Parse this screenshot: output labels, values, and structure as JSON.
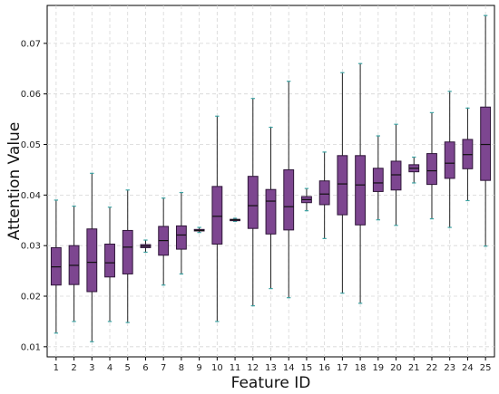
{
  "chart_data": {
    "type": "box",
    "title": "",
    "xlabel": "Feature ID",
    "ylabel": "Attention Value",
    "ylim": [
      0.008,
      0.0775
    ],
    "yticks": [
      0.01,
      0.02,
      0.03,
      0.04,
      0.05,
      0.06,
      0.07
    ],
    "ytick_labels": [
      "0.01",
      "0.02",
      "0.03",
      "0.04",
      "0.05",
      "0.06",
      "0.07"
    ],
    "grid": true,
    "categories": [
      "1",
      "2",
      "3",
      "4",
      "5",
      "6",
      "7",
      "8",
      "9",
      "10",
      "11",
      "12",
      "13",
      "14",
      "15",
      "16",
      "17",
      "18",
      "19",
      "20",
      "21",
      "22",
      "23",
      "24",
      "25"
    ],
    "boxes": [
      {
        "min": 0.0127,
        "q1": 0.0222,
        "median": 0.0258,
        "q3": 0.0296,
        "max": 0.039
      },
      {
        "min": 0.015,
        "q1": 0.0223,
        "median": 0.0261,
        "q3": 0.03,
        "max": 0.0378
      },
      {
        "min": 0.011,
        "q1": 0.0209,
        "median": 0.0267,
        "q3": 0.0333,
        "max": 0.0443
      },
      {
        "min": 0.015,
        "q1": 0.0238,
        "median": 0.0266,
        "q3": 0.0303,
        "max": 0.0376
      },
      {
        "min": 0.0148,
        "q1": 0.0244,
        "median": 0.0297,
        "q3": 0.033,
        "max": 0.041
      },
      {
        "min": 0.0287,
        "q1": 0.0296,
        "median": 0.0299,
        "q3": 0.0302,
        "max": 0.0311
      },
      {
        "min": 0.0222,
        "q1": 0.0281,
        "median": 0.031,
        "q3": 0.0338,
        "max": 0.0394
      },
      {
        "min": 0.0244,
        "q1": 0.0293,
        "median": 0.0321,
        "q3": 0.0339,
        "max": 0.0405
      },
      {
        "min": 0.0326,
        "q1": 0.0329,
        "median": 0.033,
        "q3": 0.0332,
        "max": 0.0336
      },
      {
        "min": 0.015,
        "q1": 0.0303,
        "median": 0.0358,
        "q3": 0.0417,
        "max": 0.0556
      },
      {
        "min": 0.0348,
        "q1": 0.035,
        "median": 0.0351,
        "q3": 0.0352,
        "max": 0.0354
      },
      {
        "min": 0.0181,
        "q1": 0.0334,
        "median": 0.0379,
        "q3": 0.0437,
        "max": 0.0591
      },
      {
        "min": 0.0215,
        "q1": 0.0323,
        "median": 0.0388,
        "q3": 0.0411,
        "max": 0.0534
      },
      {
        "min": 0.0197,
        "q1": 0.0331,
        "median": 0.0377,
        "q3": 0.045,
        "max": 0.0625
      },
      {
        "min": 0.0369,
        "q1": 0.0385,
        "median": 0.0391,
        "q3": 0.0397,
        "max": 0.0413
      },
      {
        "min": 0.0314,
        "q1": 0.0381,
        "median": 0.0402,
        "q3": 0.0428,
        "max": 0.0485
      },
      {
        "min": 0.0206,
        "q1": 0.0361,
        "median": 0.0422,
        "q3": 0.0478,
        "max": 0.0642
      },
      {
        "min": 0.0186,
        "q1": 0.0341,
        "median": 0.042,
        "q3": 0.0478,
        "max": 0.066
      },
      {
        "min": 0.0351,
        "q1": 0.0407,
        "median": 0.0424,
        "q3": 0.0453,
        "max": 0.0517
      },
      {
        "min": 0.034,
        "q1": 0.041,
        "median": 0.044,
        "q3": 0.0467,
        "max": 0.054
      },
      {
        "min": 0.0424,
        "q1": 0.0446,
        "median": 0.0453,
        "q3": 0.046,
        "max": 0.0475
      },
      {
        "min": 0.0353,
        "q1": 0.0421,
        "median": 0.0448,
        "q3": 0.0482,
        "max": 0.0563
      },
      {
        "min": 0.0336,
        "q1": 0.0433,
        "median": 0.0463,
        "q3": 0.0505,
        "max": 0.0605
      },
      {
        "min": 0.0389,
        "q1": 0.0452,
        "median": 0.048,
        "q3": 0.051,
        "max": 0.0572
      },
      {
        "min": 0.0299,
        "q1": 0.0429,
        "median": 0.05,
        "q3": 0.0574,
        "max": 0.0755
      }
    ],
    "colors": {
      "box_fill": "#7d4690",
      "box_edge": "#2e1538",
      "median": "#111111",
      "whisker": "#222222",
      "cap": "#3ca4a4",
      "grid": "#d6d6d6",
      "axis": "#000000"
    }
  }
}
